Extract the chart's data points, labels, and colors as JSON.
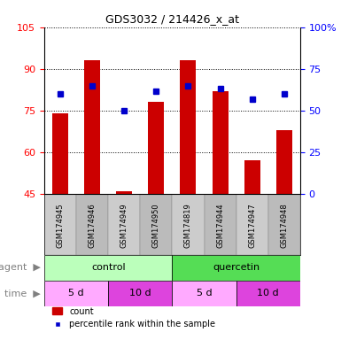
{
  "title": "GDS3032 / 214426_x_at",
  "samples": [
    "GSM174945",
    "GSM174946",
    "GSM174949",
    "GSM174950",
    "GSM174819",
    "GSM174944",
    "GSM174947",
    "GSM174948"
  ],
  "bar_values": [
    74,
    93,
    46,
    78,
    93,
    82,
    57,
    68
  ],
  "dot_values_left": [
    81,
    84,
    75,
    82,
    84,
    83,
    79,
    81
  ],
  "bar_color": "#cc0000",
  "dot_color": "#0000cc",
  "left_ylim": [
    45,
    105
  ],
  "left_yticks": [
    45,
    60,
    75,
    90,
    105
  ],
  "right_ylim": [
    0,
    100
  ],
  "right_yticks": [
    0,
    25,
    50,
    75,
    100
  ],
  "right_yticklabels": [
    "0",
    "25",
    "50",
    "75",
    "100%"
  ],
  "agent_groups": [
    {
      "label": "control",
      "start": 0,
      "end": 4,
      "color": "#bbffbb"
    },
    {
      "label": "quercetin",
      "start": 4,
      "end": 8,
      "color": "#55dd55"
    }
  ],
  "time_groups": [
    {
      "label": "5 d",
      "start": 0,
      "end": 2,
      "color": "#ffaaff"
    },
    {
      "label": "10 d",
      "start": 2,
      "end": 4,
      "color": "#dd44dd"
    },
    {
      "label": "5 d",
      "start": 4,
      "end": 6,
      "color": "#ffaaff"
    },
    {
      "label": "10 d",
      "start": 6,
      "end": 8,
      "color": "#dd44dd"
    }
  ],
  "sample_bg_color": "#cccccc",
  "legend_count_label": "count",
  "legend_pct_label": "percentile rank within the sample",
  "xlabel_agent": "agent",
  "xlabel_time": "time"
}
